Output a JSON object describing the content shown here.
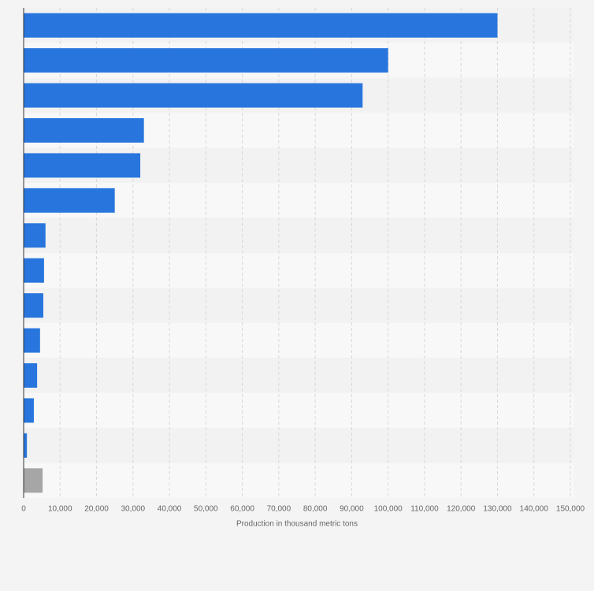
{
  "chart_data": {
    "type": "barh",
    "x_label": "Production in thousand metric tons",
    "categories": [
      null,
      null,
      null,
      null,
      null,
      null,
      null,
      null,
      null,
      null,
      null,
      null,
      null,
      null
    ],
    "values": [
      130000,
      100000,
      93000,
      33000,
      32000,
      25000,
      6000,
      5600,
      5400,
      4500,
      3700,
      2800,
      900,
      5200
    ],
    "colors": [
      "#2876dd",
      "#2876dd",
      "#2876dd",
      "#2876dd",
      "#2876dd",
      "#2876dd",
      "#2876dd",
      "#2876dd",
      "#2876dd",
      "#2876dd",
      "#2876dd",
      "#2876dd",
      "#2876dd",
      "#a6a6a6"
    ],
    "xlim": [
      0,
      150000
    ],
    "xticks": [
      0,
      {
        "value": 10000,
        "label": "10,000"
      },
      {
        "value": 20000,
        "label": "20,000"
      },
      {
        "value": 30000,
        "label": "30,000"
      },
      {
        "value": 40000,
        "label": "40,000"
      },
      {
        "value": 50000,
        "label": "50,000"
      },
      {
        "value": 60000,
        "label": "60,000"
      },
      {
        "value": 70000,
        "label": "70,000"
      },
      {
        "value": 80000,
        "label": "80,000"
      },
      {
        "value": 90000,
        "label": "90,000"
      },
      {
        "value": 100000,
        "label": "100,000"
      },
      {
        "value": 110000,
        "label": "110,000"
      },
      {
        "value": 120000,
        "label": "120,000"
      },
      {
        "value": 130000,
        "label": "130,000"
      },
      {
        "value": 140000,
        "label": "140,000"
      },
      {
        "value": 150000,
        "label": "150,000"
      }
    ],
    "grid": true
  }
}
